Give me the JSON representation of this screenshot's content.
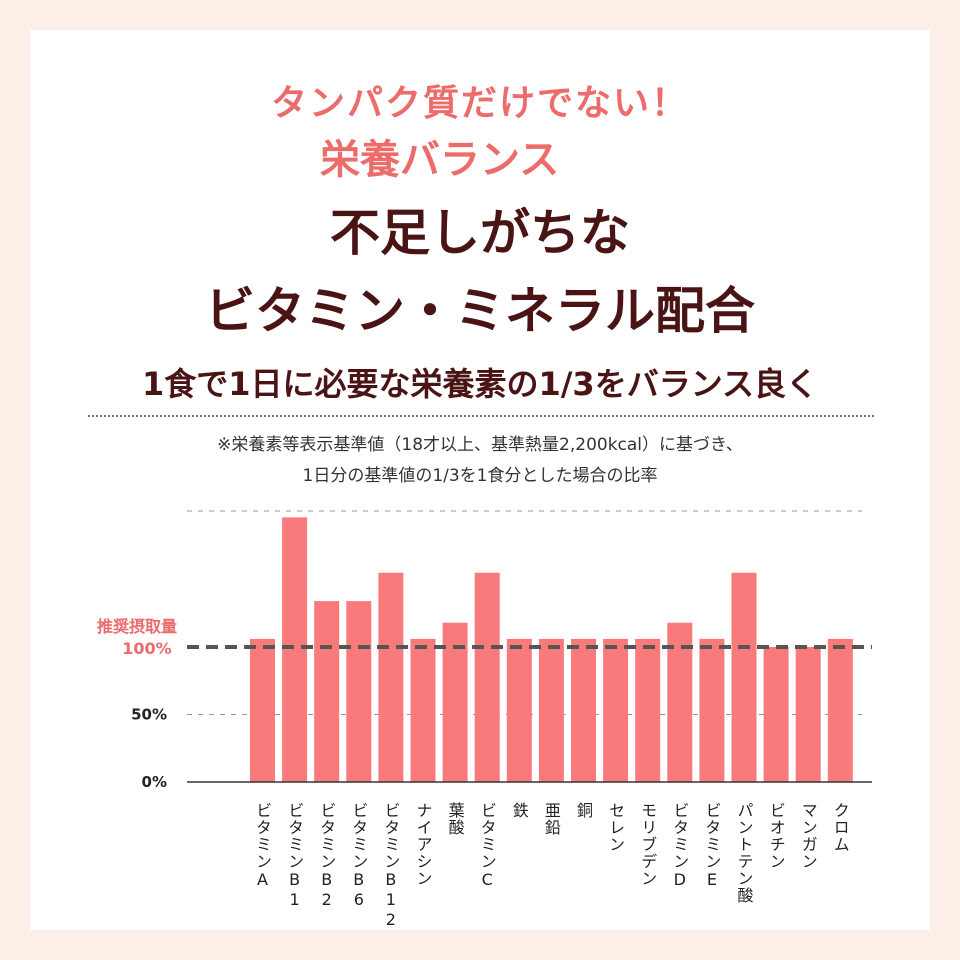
{
  "heading": {
    "line1": "タンパク質だけでない！",
    "line2": "栄養バランス",
    "line3": "不足しがちな",
    "line4": "ビタミン・ミネラル配合",
    "subtitle": "1食で1日に必要な栄養素の1/3をバランス良く"
  },
  "note": {
    "line1": "※栄養素等表示基準値（18才以上、基準熱量2,200kcal）に基づき、",
    "line2": "1日分の基準値の1/3を1食分とした場合の比率"
  },
  "colors": {
    "accent": "#ec6b6b",
    "bar": "#f97a7a",
    "title": "#4a1414",
    "background": "#fcefe8"
  },
  "chart_data": {
    "type": "bar",
    "reference": {
      "label": "推奨摂取量",
      "value": 100,
      "value_label": "100%"
    },
    "yticks": [
      {
        "value": 0,
        "label": "0%"
      },
      {
        "value": 50,
        "label": "50%"
      },
      {
        "value": 100,
        "label": "100%"
      }
    ],
    "ylim": [
      0,
      200
    ],
    "categories": [
      "ビタミンA",
      "ビタミンB1",
      "ビタミンB2",
      "ビタミンB6",
      "ビタミンB12",
      "ナイアシン",
      "葉酸",
      "ビタミンC",
      "鉄",
      "亜鉛",
      "銅",
      "セレン",
      "モリブデン",
      "ビタミンD",
      "ビタミンE",
      "パントテン酸",
      "ビオチン",
      "マンガン",
      "クロム"
    ],
    "values": [
      106,
      196,
      134,
      134,
      155,
      106,
      118,
      155,
      106,
      106,
      106,
      106,
      106,
      118,
      106,
      155,
      100,
      100,
      106
    ],
    "grid": true
  }
}
